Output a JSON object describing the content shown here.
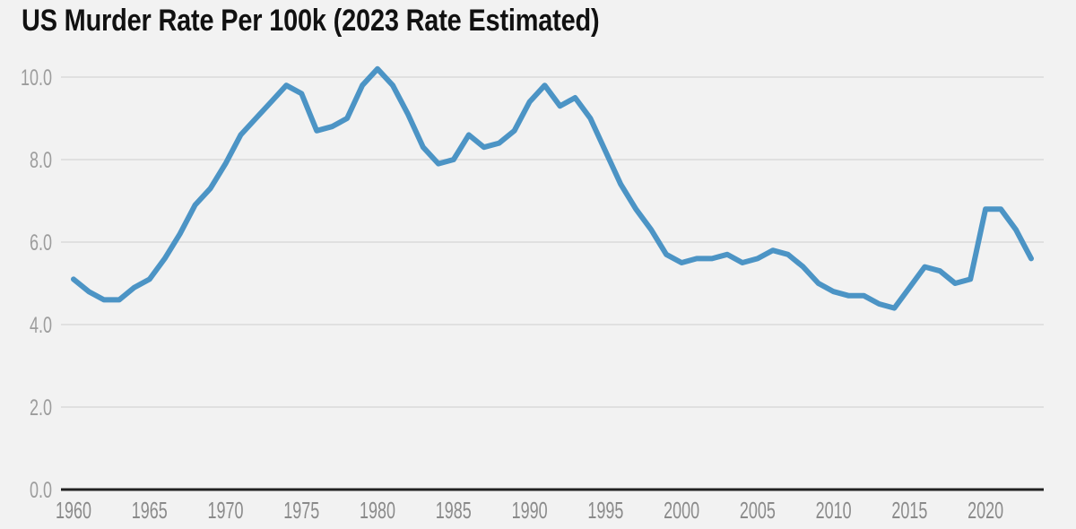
{
  "page": {
    "background_color": "#f2f2f2"
  },
  "chart_data": {
    "type": "line",
    "title": "US Murder Rate Per 100k (2023 Rate Estimated)",
    "x_years": [
      1960,
      1961,
      1962,
      1963,
      1964,
      1965,
      1966,
      1967,
      1968,
      1969,
      1970,
      1971,
      1972,
      1973,
      1974,
      1975,
      1976,
      1977,
      1978,
      1979,
      1980,
      1981,
      1982,
      1983,
      1984,
      1985,
      1986,
      1987,
      1988,
      1989,
      1990,
      1991,
      1992,
      1993,
      1994,
      1995,
      1996,
      1997,
      1998,
      1999,
      2000,
      2001,
      2002,
      2003,
      2004,
      2005,
      2006,
      2007,
      2008,
      2009,
      2010,
      2011,
      2012,
      2013,
      2014,
      2015,
      2016,
      2017,
      2018,
      2019,
      2020,
      2021,
      2022,
      2023
    ],
    "series": [
      {
        "name": "US murder rate per 100k",
        "color": "#4C94C5",
        "values": [
          5.1,
          4.8,
          4.6,
          4.6,
          4.9,
          5.1,
          5.6,
          6.2,
          6.9,
          7.3,
          7.9,
          8.6,
          9.0,
          9.4,
          9.8,
          9.6,
          8.7,
          8.8,
          9.0,
          9.8,
          10.2,
          9.8,
          9.1,
          8.3,
          7.9,
          8.0,
          8.6,
          8.3,
          8.4,
          8.7,
          9.4,
          9.8,
          9.3,
          9.5,
          9.0,
          8.2,
          7.4,
          6.8,
          6.3,
          5.7,
          5.5,
          5.6,
          5.6,
          5.7,
          5.5,
          5.6,
          5.8,
          5.7,
          5.4,
          5.0,
          4.8,
          4.7,
          4.7,
          4.5,
          4.4,
          4.9,
          5.4,
          5.3,
          5.0,
          5.1,
          6.8,
          6.8,
          6.3,
          5.6
        ]
      }
    ],
    "x_ticks": [
      {
        "value": 1960,
        "label": "1960"
      },
      {
        "value": 1965,
        "label": "1965"
      },
      {
        "value": 1970,
        "label": "1970"
      },
      {
        "value": 1975,
        "label": "1975"
      },
      {
        "value": 1980,
        "label": "1980"
      },
      {
        "value": 1985,
        "label": "1985"
      },
      {
        "value": 1990,
        "label": "1990"
      },
      {
        "value": 1995,
        "label": "1995"
      },
      {
        "value": 2000,
        "label": "2000"
      },
      {
        "value": 2005,
        "label": "2005"
      },
      {
        "value": 2010,
        "label": "2010"
      },
      {
        "value": 2015,
        "label": "2015"
      },
      {
        "value": 2020,
        "label": "2020"
      }
    ],
    "y_ticks": [
      {
        "value": 0,
        "label": "0.0"
      },
      {
        "value": 2,
        "label": "2.0"
      },
      {
        "value": 4,
        "label": "4.0"
      },
      {
        "value": 6,
        "label": "6.0"
      },
      {
        "value": 8,
        "label": "8.0"
      },
      {
        "value": 10,
        "label": "10.0"
      }
    ],
    "xlim": [
      1960,
      2023
    ],
    "ylim": [
      0,
      10
    ],
    "grid": "horizontal",
    "legend": "none",
    "xlabel": "",
    "ylabel": "",
    "colors": {
      "line": "#4C94C5",
      "gridline": "#e0e0e0",
      "baseline": "#222222",
      "y_tick_text": "#9c9c9c",
      "x_tick_text": "#8a8a8a",
      "title_text": "#111111"
    }
  }
}
